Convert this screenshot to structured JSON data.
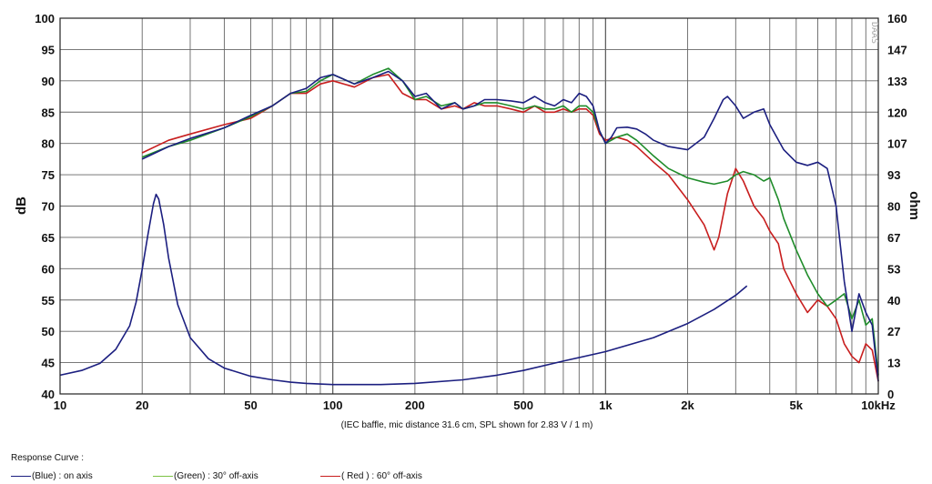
{
  "brand": "DAAS",
  "chart_data": {
    "type": "line",
    "xscale": "log",
    "xlim": [
      10,
      10000
    ],
    "ylim_left": [
      40,
      100
    ],
    "ylim_right": [
      0,
      160
    ],
    "ylabel_left": "dB",
    "ylabel_right": "ohm",
    "x_ticks": [
      10,
      20,
      50,
      100,
      200,
      500,
      1000,
      2000,
      5000,
      10000
    ],
    "x_tick_labels": [
      "10",
      "20",
      "50",
      "100",
      "200",
      "500",
      "1k",
      "2k",
      "5k",
      "10kHz"
    ],
    "y_left_ticks": [
      40,
      45,
      50,
      55,
      60,
      65,
      70,
      75,
      80,
      85,
      90,
      95,
      100
    ],
    "y_left_tick_labels": [
      "40",
      "45",
      "50",
      "55",
      "60",
      "65",
      "70",
      "75",
      "80",
      "85",
      "90",
      "95",
      "100"
    ],
    "y_right_tick_labels": [
      "0",
      "13",
      "27",
      "40",
      "53",
      "67",
      "80",
      "93",
      "107",
      "120",
      "133",
      "147",
      "160"
    ],
    "grid": true,
    "caption": "(IEC baffle, mic distance 31.6 cm, SPL shown for 2.83 V / 1 m)",
    "legend_title": "Response Curve :",
    "series": [
      {
        "name": "(Blue)  : on axis",
        "color": "#1c1f80",
        "x": [
          20,
          25,
          30,
          40,
          50,
          60,
          70,
          80,
          90,
          100,
          120,
          140,
          160,
          180,
          200,
          220,
          250,
          280,
          300,
          330,
          360,
          400,
          450,
          500,
          550,
          600,
          650,
          700,
          750,
          800,
          850,
          900,
          950,
          1000,
          1050,
          1100,
          1200,
          1300,
          1400,
          1500,
          1700,
          2000,
          2300,
          2500,
          2700,
          2800,
          3000,
          3200,
          3500,
          3800,
          4000,
          4500,
          5000,
          5500,
          6000,
          6500,
          7000,
          7500,
          8000,
          8500,
          9000,
          9500,
          10000
        ],
        "values": [
          77.5,
          79.5,
          80.8,
          82.5,
          84.5,
          86,
          88,
          88.8,
          90.5,
          91,
          89.5,
          90.5,
          91.5,
          90,
          87.5,
          88,
          85.5,
          86.5,
          85.5,
          86,
          87,
          87,
          86.8,
          86.5,
          87.5,
          86.5,
          86,
          87,
          86.5,
          88,
          87.5,
          86,
          82,
          80,
          81,
          82.5,
          82.6,
          82.3,
          81.5,
          80.5,
          79.5,
          79,
          81,
          84,
          87,
          87.5,
          86,
          84,
          85,
          85.5,
          83,
          79,
          77,
          76.5,
          77,
          76,
          70,
          58,
          50,
          56,
          53,
          51,
          42
        ]
      },
      {
        "name": "(Green) : 30° off-axis",
        "color": "#1f8c2a",
        "x": [
          20,
          25,
          30,
          40,
          50,
          60,
          70,
          80,
          90,
          100,
          120,
          140,
          160,
          180,
          200,
          220,
          250,
          280,
          300,
          330,
          360,
          400,
          450,
          500,
          550,
          600,
          650,
          700,
          750,
          800,
          850,
          900,
          950,
          1000,
          1100,
          1200,
          1300,
          1500,
          1700,
          2000,
          2300,
          2500,
          2800,
          3000,
          3200,
          3500,
          3800,
          4000,
          4300,
          4500,
          5000,
          5500,
          6000,
          6500,
          7000,
          7500,
          8000,
          8500,
          9000,
          9500,
          10000
        ],
        "values": [
          77.8,
          79.5,
          80.5,
          82.5,
          84.3,
          86,
          88,
          88.3,
          90,
          91,
          89.5,
          91,
          92,
          90,
          87,
          87.5,
          86,
          86.5,
          85.5,
          86,
          86.5,
          86.5,
          86,
          85.5,
          86,
          85.5,
          85.5,
          86,
          85,
          86,
          86,
          85,
          82,
          80,
          81,
          81.5,
          80.5,
          78,
          76,
          74.5,
          73.8,
          73.5,
          74,
          75,
          75.5,
          75,
          74,
          74.5,
          71,
          68,
          63,
          59,
          56,
          54,
          55,
          56,
          52,
          55,
          51,
          52,
          43
        ]
      },
      {
        "name": "( Red ) : 60° off-axis",
        "color": "#c81e1e",
        "x": [
          20,
          25,
          30,
          40,
          50,
          60,
          70,
          80,
          90,
          100,
          120,
          140,
          160,
          180,
          200,
          220,
          250,
          280,
          300,
          330,
          360,
          400,
          450,
          500,
          550,
          600,
          650,
          700,
          750,
          800,
          850,
          900,
          950,
          1000,
          1100,
          1200,
          1300,
          1500,
          1700,
          2000,
          2300,
          2500,
          2600,
          2800,
          3000,
          3200,
          3500,
          3800,
          4000,
          4300,
          4500,
          5000,
          5500,
          6000,
          6500,
          7000,
          7500,
          8000,
          8500,
          9000,
          9500,
          10000
        ],
        "values": [
          78.5,
          80.5,
          81.5,
          83,
          84,
          86,
          88,
          88,
          89.5,
          90,
          89,
          90.5,
          91,
          88,
          87,
          87,
          85.5,
          86,
          85.5,
          86.5,
          86,
          86,
          85.5,
          85,
          86,
          85,
          85,
          85.5,
          85,
          85.5,
          85.5,
          84.5,
          81.5,
          80.5,
          81,
          80.5,
          79.5,
          77,
          75,
          71,
          67,
          63,
          65,
          72,
          76,
          74,
          70,
          68,
          66,
          64,
          60,
          56,
          53,
          55,
          54,
          52,
          48,
          46,
          45,
          48,
          47,
          42
        ]
      }
    ],
    "impedance": {
      "name": "impedance",
      "color": "#1c1f80",
      "units": "ohm",
      "x": [
        10,
        12,
        14,
        16,
        18,
        19,
        20,
        21,
        22,
        22.5,
        23,
        24,
        25,
        27,
        30,
        35,
        40,
        50,
        60,
        70,
        80,
        100,
        150,
        200,
        300,
        400,
        500,
        700,
        1000,
        1500,
        2000,
        2500,
        3000,
        3300
      ],
      "values": [
        8,
        10,
        13,
        19,
        29,
        39,
        53,
        68,
        81,
        85,
        83,
        72,
        58,
        38,
        24,
        15,
        11,
        7.5,
        6,
        5,
        4.5,
        4,
        4,
        4.5,
        6,
        8,
        10,
        14,
        18,
        24,
        30,
        36,
        42,
        46
      ]
    }
  }
}
